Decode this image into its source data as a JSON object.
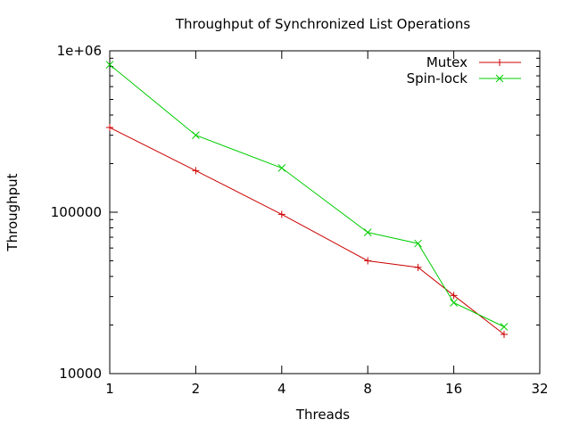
{
  "chart_data": {
    "type": "line",
    "title": "Throughput of Synchronized List Operations",
    "xlabel": "Threads",
    "ylabel": "Throughput",
    "x_scale": "log2",
    "y_scale": "log10",
    "xlim": [
      1,
      32
    ],
    "ylim": [
      10000,
      1000000
    ],
    "x_ticks": [
      {
        "value": 1,
        "label": "1"
      },
      {
        "value": 2,
        "label": "2"
      },
      {
        "value": 4,
        "label": "4"
      },
      {
        "value": 8,
        "label": "8"
      },
      {
        "value": 16,
        "label": "16"
      },
      {
        "value": 32,
        "label": "32"
      }
    ],
    "y_ticks": [
      {
        "value": 10000,
        "label": "10000"
      },
      {
        "value": 100000,
        "label": "100000"
      },
      {
        "value": 1000000,
        "label": "1e+06"
      }
    ],
    "grid": false,
    "legend_position": "top-right",
    "series": [
      {
        "name": "Mutex",
        "color": "#cc0000",
        "marker": "plus",
        "x": [
          1,
          2,
          4,
          8,
          12,
          16,
          24
        ],
        "y": [
          335000,
          181000,
          97000,
          50000,
          45500,
          30500,
          17500
        ]
      },
      {
        "name": "Spin-lock",
        "color": "#00cc00",
        "marker": "cross",
        "x": [
          1,
          2,
          4,
          8,
          12,
          16,
          24
        ],
        "y": [
          820000,
          300000,
          188000,
          75000,
          64000,
          27500,
          19500
        ]
      }
    ]
  }
}
